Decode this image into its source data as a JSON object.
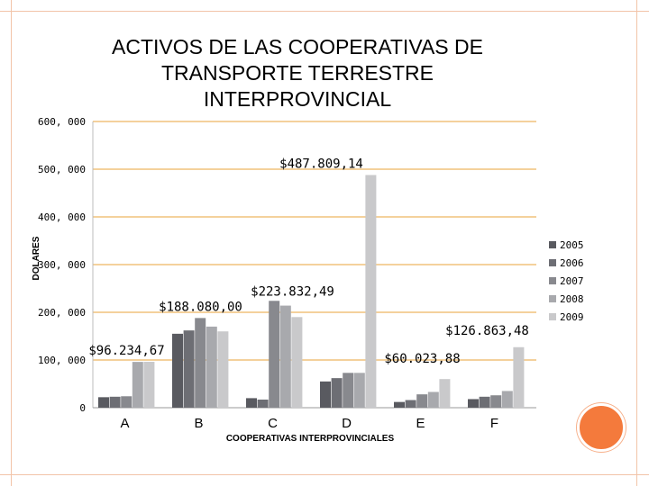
{
  "colors": {
    "2005": "#595a60",
    "2006": "#6d6e74",
    "2007": "#88898e",
    "2008": "#a8a9ad",
    "2009": "#c9c9cb",
    "grid": "#e8a33a",
    "frame": "#f2c4a8",
    "accent": "#f47a3c"
  },
  "chart_data": {
    "type": "bar",
    "title": "ACTIVOS DE LAS COOPERATIVAS  DE\nTRANSPORTE  TERRESTRE\nINTERPROVINCIAL",
    "xlabel": "COOPERATIVAS INTERPROVINCIALES",
    "ylabel": "DOLARES",
    "ylim": [
      0,
      600000
    ],
    "yticks": [
      0,
      100000,
      200000,
      300000,
      400000,
      500000,
      600000
    ],
    "ytick_labels": [
      "0",
      "100, 000",
      "200, 000",
      "300, 000",
      "400, 000",
      "500, 000",
      "600, 000"
    ],
    "grid": true,
    "legend_position": "right",
    "categories": [
      "A",
      "B",
      "C",
      "D",
      "E",
      "F"
    ],
    "series": [
      {
        "name": "2005",
        "values": [
          22000,
          155000,
          20000,
          55000,
          12000,
          18000
        ]
      },
      {
        "name": "2006",
        "values": [
          23000,
          162000,
          17000,
          62000,
          16000,
          23000
        ]
      },
      {
        "name": "2007",
        "values": [
          24000,
          188000,
          224000,
          73000,
          28000,
          26000
        ]
      },
      {
        "name": "2008",
        "values": [
          96000,
          170000,
          214000,
          73000,
          33000,
          35000
        ]
      },
      {
        "name": "2009",
        "values": [
          96235,
          160000,
          190000,
          487809,
          60024,
          126863
        ]
      }
    ],
    "annotations": [
      {
        "text": "$96.234,67",
        "category": "A",
        "value": 96235
      },
      {
        "text": "$188.080,00",
        "category": "B",
        "value": 188080
      },
      {
        "text": "$223.832,49",
        "category": "C",
        "value": 223832
      },
      {
        "text": "$487.809,14",
        "category": "D",
        "value": 487809
      },
      {
        "text": "$60.023,88",
        "category": "E",
        "value": 60024
      },
      {
        "text": "$126.863,48",
        "category": "F",
        "value": 126863
      }
    ]
  }
}
